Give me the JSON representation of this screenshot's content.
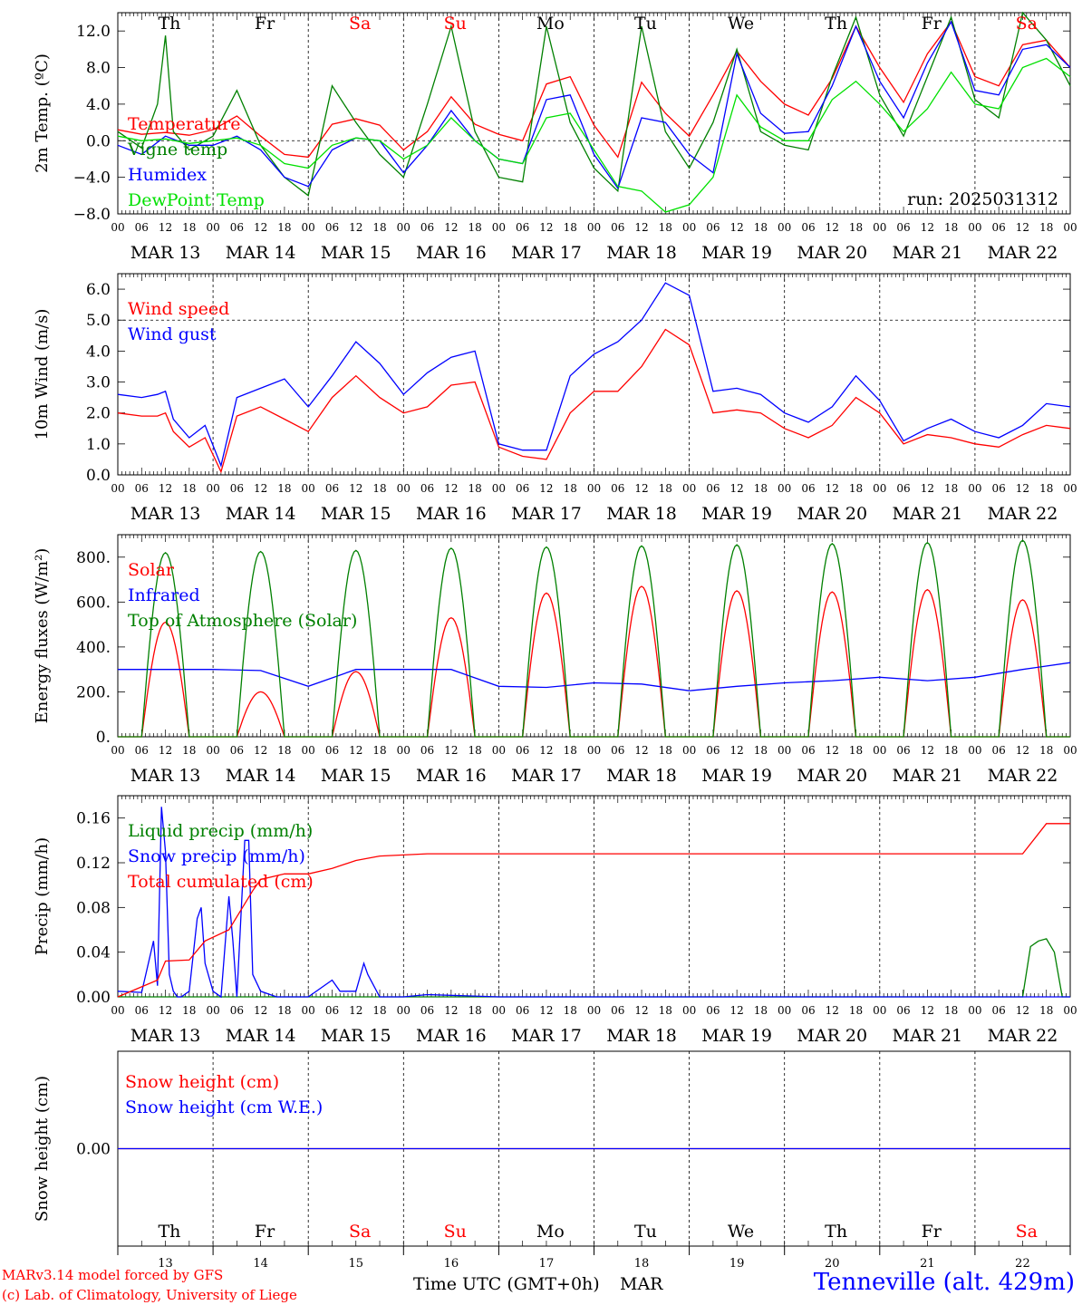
{
  "days_letters": [
    {
      "label": "Th",
      "color": "#000000"
    },
    {
      "label": "Fr",
      "color": "#000000"
    },
    {
      "label": "Sa",
      "color": "#ff0000"
    },
    {
      "label": "Su",
      "color": "#ff0000"
    },
    {
      "label": "Mo",
      "color": "#000000"
    },
    {
      "label": "Tu",
      "color": "#000000"
    },
    {
      "label": "We",
      "color": "#000000"
    },
    {
      "label": "Th",
      "color": "#000000"
    },
    {
      "label": "Fr",
      "color": "#000000"
    },
    {
      "label": "Sa",
      "color": "#ff0000"
    }
  ],
  "date_labels": [
    "MAR 13",
    "MAR 14",
    "MAR 15",
    "MAR 16",
    "MAR 17",
    "MAR 18",
    "MAR 19",
    "MAR 20",
    "MAR 21",
    "MAR 22"
  ],
  "day_numbers": [
    "13",
    "14",
    "15",
    "16",
    "17",
    "18",
    "19",
    "20",
    "21",
    "22"
  ],
  "hour_ticks": [
    "00",
    "06",
    "12",
    "18"
  ],
  "colors": {
    "red": "#ff0000",
    "green": "#008000",
    "blue": "#0000ff",
    "lightgreen": "#00e000",
    "black": "#000000"
  },
  "footer": {
    "credit1": "MARv3.14 model forced by GFS",
    "credit2": "(c) Lab. of Climatology, University of Liege",
    "xlabel": "Time UTC (GMT+0h)",
    "month": "MAR",
    "station": "Tenneville (alt. 429m)"
  },
  "chart_data": [
    {
      "type": "line",
      "ylabel": "2m Temp. (ºC)",
      "ylim": [
        -8,
        14
      ],
      "yticks": [
        "−8.0",
        "−4.0",
        "0.0",
        "4.0",
        "8.0",
        "12.0"
      ],
      "reference_line": 0,
      "run_label": "run: 2025031312",
      "x_unit": "hours since 2025-03-13 00 UTC",
      "series": [
        {
          "name": "Temperature",
          "color": "#ff0000",
          "x": [
            0,
            6,
            12,
            18,
            24,
            30,
            36,
            42,
            48,
            54,
            60,
            66,
            72,
            78,
            84,
            90,
            96,
            102,
            108,
            114,
            120,
            126,
            132,
            138,
            144,
            150,
            156,
            162,
            168,
            174,
            180,
            186,
            192,
            198,
            204,
            210,
            216,
            222,
            228,
            234,
            240
          ],
          "y": [
            1.2,
            0.7,
            0.9,
            0.6,
            1.2,
            2.7,
            0.5,
            -1.5,
            -1.8,
            1.8,
            2.4,
            1.7,
            -1.0,
            1.0,
            4.8,
            1.8,
            0.7,
            0.0,
            6.2,
            7.0,
            1.7,
            -1.8,
            6.4,
            3.0,
            0.5,
            5.0,
            9.8,
            6.5,
            4.0,
            2.8,
            6.8,
            12.5,
            8.0,
            4.2,
            9.5,
            13.0,
            7.0,
            6.0,
            10.5,
            11.0,
            8.0
          ]
        },
        {
          "name": "Vigne temp",
          "color": "#008000",
          "x": [
            0,
            6,
            10,
            12,
            14,
            18,
            24,
            30,
            36,
            42,
            48,
            54,
            60,
            66,
            72,
            78,
            84,
            90,
            96,
            102,
            108,
            114,
            120,
            126,
            132,
            138,
            144,
            150,
            156,
            162,
            168,
            174,
            180,
            186,
            192,
            198,
            204,
            210,
            216,
            222,
            228,
            234,
            240
          ],
          "y": [
            1.0,
            -0.8,
            4.0,
            11.5,
            1.0,
            -1.0,
            0.5,
            5.5,
            -0.5,
            -4.0,
            -6.0,
            6.0,
            2.0,
            -1.5,
            -4.0,
            4.0,
            12.5,
            1.0,
            -4.0,
            -4.5,
            12.5,
            2.0,
            -3.0,
            -5.5,
            12.5,
            1.0,
            -3.0,
            2.0,
            10.0,
            1.0,
            -0.5,
            -1.0,
            7.0,
            13.5,
            5.0,
            0.5,
            7.0,
            13.5,
            4.5,
            2.5,
            14.0,
            11.0,
            6.0
          ]
        },
        {
          "name": "Humidex",
          "color": "#0000ff",
          "x": [
            0,
            6,
            12,
            18,
            24,
            30,
            36,
            42,
            48,
            54,
            60,
            66,
            72,
            78,
            84,
            90,
            96,
            102,
            108,
            114,
            120,
            126,
            132,
            138,
            144,
            150,
            156,
            162,
            168,
            174,
            180,
            186,
            192,
            198,
            204,
            210,
            216,
            222,
            228,
            234,
            240
          ],
          "y": [
            -0.5,
            -1.5,
            0.5,
            -0.5,
            -0.5,
            0.5,
            -1.0,
            -4.0,
            -5.0,
            -1.0,
            0.3,
            0.0,
            -3.5,
            -0.5,
            3.3,
            0.0,
            -2.0,
            -2.5,
            4.5,
            5.0,
            -1.5,
            -5.2,
            2.5,
            2.0,
            -1.5,
            -3.5,
            9.5,
            3.0,
            0.8,
            1.0,
            6.0,
            12.5,
            6.5,
            2.5,
            8.5,
            13.0,
            5.5,
            5.0,
            10.0,
            10.5,
            8.0
          ]
        },
        {
          "name": "DewPoint Temp",
          "color": "#00e000",
          "x": [
            0,
            6,
            12,
            18,
            24,
            30,
            36,
            42,
            48,
            54,
            60,
            66,
            72,
            78,
            84,
            90,
            96,
            102,
            108,
            114,
            120,
            126,
            132,
            138,
            144,
            150,
            156,
            162,
            168,
            174,
            180,
            186,
            192,
            198,
            204,
            210,
            216,
            222,
            228,
            234,
            240
          ],
          "y": [
            0.5,
            0.0,
            0.2,
            -0.3,
            0.0,
            0.3,
            -0.5,
            -2.5,
            -3.0,
            -0.5,
            0.3,
            0.0,
            -2.0,
            -0.5,
            2.5,
            0.0,
            -2.0,
            -2.5,
            2.5,
            3.0,
            -1.0,
            -5.0,
            -5.5,
            -7.8,
            -7.0,
            -4.0,
            5.0,
            1.5,
            0.0,
            0.0,
            4.5,
            6.5,
            4.0,
            1.0,
            3.5,
            7.5,
            4.0,
            3.5,
            8.0,
            9.0,
            7.0
          ]
        }
      ]
    },
    {
      "type": "line",
      "ylabel": "10m Wind (m/s)",
      "ylim": [
        0,
        6.5
      ],
      "yticks": [
        "0.0",
        "1.0",
        "2.0",
        "3.0",
        "4.0",
        "5.0",
        "6.0"
      ],
      "reference_line": 5.0,
      "x_unit": "hours since 2025-03-13 00 UTC",
      "series": [
        {
          "name": "Wind speed",
          "color": "#ff0000",
          "x": [
            0,
            6,
            10,
            12,
            14,
            18,
            22,
            26,
            30,
            36,
            42,
            48,
            54,
            60,
            66,
            72,
            78,
            84,
            90,
            96,
            102,
            108,
            114,
            120,
            126,
            132,
            138,
            144,
            150,
            156,
            162,
            168,
            174,
            180,
            186,
            192,
            198,
            204,
            210,
            216,
            222,
            228,
            234,
            240
          ],
          "y": [
            2.0,
            1.9,
            1.9,
            2.0,
            1.4,
            0.9,
            1.2,
            0.1,
            1.9,
            2.2,
            1.8,
            1.4,
            2.5,
            3.2,
            2.5,
            2.0,
            2.2,
            2.9,
            3.0,
            0.9,
            0.6,
            0.5,
            2.0,
            2.7,
            2.7,
            3.5,
            4.7,
            4.2,
            2.0,
            2.1,
            2.0,
            1.5,
            1.2,
            1.6,
            2.5,
            2.0,
            1.0,
            1.3,
            1.2,
            1.0,
            0.9,
            1.3,
            1.6,
            1.5
          ]
        },
        {
          "name": "Wind gust",
          "color": "#0000ff",
          "x": [
            0,
            6,
            10,
            12,
            14,
            18,
            22,
            26,
            30,
            36,
            42,
            48,
            54,
            60,
            66,
            72,
            78,
            84,
            90,
            96,
            102,
            108,
            114,
            120,
            126,
            132,
            138,
            144,
            150,
            156,
            162,
            168,
            174,
            180,
            186,
            192,
            198,
            204,
            210,
            216,
            222,
            228,
            234,
            240
          ],
          "y": [
            2.6,
            2.5,
            2.6,
            2.7,
            1.8,
            1.2,
            1.6,
            0.3,
            2.5,
            2.8,
            3.1,
            2.2,
            3.2,
            4.3,
            3.6,
            2.6,
            3.3,
            3.8,
            4.0,
            1.0,
            0.8,
            0.8,
            3.2,
            3.9,
            4.3,
            5.0,
            6.2,
            5.8,
            2.7,
            2.8,
            2.6,
            2.0,
            1.7,
            2.2,
            3.2,
            2.4,
            1.1,
            1.5,
            1.8,
            1.4,
            1.2,
            1.6,
            2.3,
            2.2
          ]
        }
      ]
    },
    {
      "type": "line",
      "ylabel": "Energy fluxes (W/m²)",
      "ylim": [
        0,
        900
      ],
      "yticks": [
        "0.",
        "200.",
        "400.",
        "600.",
        "800."
      ],
      "x_unit": "hours since 2025-03-13 00 UTC",
      "series": [
        {
          "name": "Solar",
          "color": "#ff0000",
          "daily_peaks": [
            510,
            200,
            290,
            530,
            640,
            670,
            650,
            645,
            655,
            610
          ]
        },
        {
          "name": "Infrared",
          "color": "#0000ff",
          "x": [
            0,
            12,
            24,
            36,
            48,
            60,
            72,
            84,
            96,
            108,
            120,
            132,
            144,
            156,
            168,
            180,
            192,
            204,
            216,
            228,
            240
          ],
          "y": [
            300,
            300,
            300,
            295,
            225,
            300,
            300,
            300,
            225,
            220,
            240,
            235,
            205,
            225,
            240,
            250,
            265,
            250,
            265,
            300,
            330
          ]
        },
        {
          "name": "Top of Atmosphere (Solar)",
          "color": "#008000",
          "daily_peaks": [
            820,
            825,
            830,
            840,
            845,
            850,
            855,
            860,
            865,
            875
          ]
        }
      ]
    },
    {
      "type": "line",
      "ylabel": "Precip (mm/h)",
      "ylim": [
        0,
        0.18
      ],
      "yticks": [
        "0.00",
        "0.04",
        "0.08",
        "0.12",
        "0.16"
      ],
      "x_unit": "hours since 2025-03-13 00 UTC",
      "series": [
        {
          "name": "Liquid precip (mm/h)",
          "color": "#008000",
          "x": [
            0,
            228,
            230,
            232,
            234,
            236,
            238,
            240
          ],
          "y": [
            0,
            0,
            0.045,
            0.05,
            0.052,
            0.04,
            0.0,
            0
          ]
        },
        {
          "name": "Snow precip (mm/h)",
          "color": "#0000ff",
          "x": [
            0,
            6,
            9,
            10,
            11,
            12,
            13,
            14,
            15,
            16,
            18,
            20,
            21,
            22,
            24,
            26,
            28,
            29,
            30,
            32,
            33,
            34,
            36,
            40,
            48,
            54,
            56,
            60,
            62,
            63,
            66,
            72,
            78,
            96,
            240
          ],
          "y": [
            0.005,
            0.004,
            0.05,
            0.01,
            0.17,
            0.13,
            0.02,
            0.005,
            0.0,
            0.0,
            0.005,
            0.07,
            0.08,
            0.03,
            0.005,
            0.0,
            0.09,
            0.05,
            0.0,
            0.14,
            0.14,
            0.02,
            0.005,
            0.0,
            0.0,
            0.015,
            0.005,
            0.005,
            0.03,
            0.02,
            0.0,
            0.0,
            0.002,
            0.0,
            0.0
          ]
        },
        {
          "name": "Total cumulated (cm)",
          "color": "#ff0000",
          "x": [
            0,
            10,
            12,
            18,
            22,
            28,
            34,
            36,
            42,
            48,
            54,
            60,
            66,
            72,
            78,
            84,
            96,
            228,
            234,
            240
          ],
          "y": [
            0.0,
            0.015,
            0.032,
            0.033,
            0.05,
            0.06,
            0.095,
            0.105,
            0.11,
            0.11,
            0.115,
            0.122,
            0.126,
            0.127,
            0.128,
            0.128,
            0.128,
            0.128,
            0.155,
            0.155
          ]
        }
      ]
    },
    {
      "type": "line",
      "ylabel": "Snow height (cm)",
      "ylim": [
        -1,
        1
      ],
      "yticks": [
        "0.00"
      ],
      "x_unit": "hours since 2025-03-13 00 UTC",
      "series": [
        {
          "name": "Snow height (cm)",
          "color": "#ff0000",
          "x": [
            0,
            240
          ],
          "y": [
            0,
            0
          ]
        },
        {
          "name": "Snow height (cm W.E.)",
          "color": "#0000ff",
          "x": [
            0,
            240
          ],
          "y": [
            0,
            0
          ]
        }
      ]
    }
  ]
}
